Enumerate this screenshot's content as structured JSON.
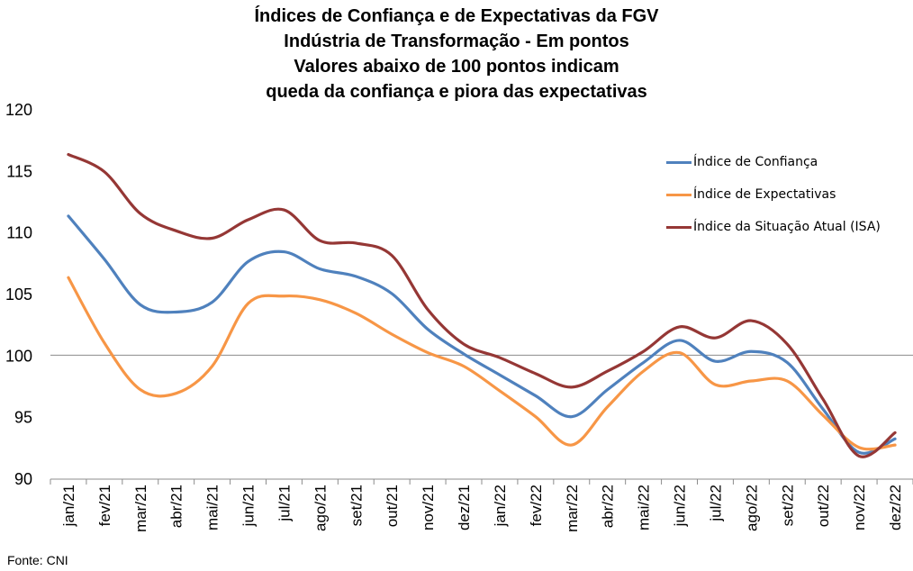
{
  "title_lines": [
    "Índices de Confiança e de Expectativas da FGV",
    "Indústria de Transformação - Em pontos",
    "Valores abaixo de 100 pontos indicam",
    "queda da confiança e piora das expectativas"
  ],
  "source": "Fonte: CNI",
  "chart_data": {
    "type": "line",
    "title": "Índices de Confiança e de Expectativas da FGV Indústria de Transformação - Em pontos Valores abaixo de 100 pontos indicam queda da confiança e piora das expectativas",
    "categories": [
      "jan/21",
      "fev/21",
      "mar/21",
      "abr/21",
      "mai/21",
      "jun/21",
      "jul/21",
      "ago/21",
      "set/21",
      "out/21",
      "nov/21",
      "dez/21",
      "jan/22",
      "fev/22",
      "mar/22",
      "abr/22",
      "mai/22",
      "jun/22",
      "jul/22",
      "ago/22",
      "set/22",
      "out/22",
      "nov/22",
      "dez/22"
    ],
    "ylim": [
      90,
      120
    ],
    "yticks": [
      90,
      95,
      100,
      105,
      110,
      115,
      120
    ],
    "reference_line": 100,
    "grid": false,
    "legend_position": "top-right",
    "series": [
      {
        "name": "Índice de Confiança",
        "color": "#4F81BD",
        "values": [
          111.3,
          107.8,
          104.1,
          103.5,
          104.3,
          107.6,
          108.4,
          107.0,
          106.4,
          105.0,
          102.1,
          100.1,
          98.4,
          96.7,
          95.0,
          97.2,
          99.4,
          101.2,
          99.5,
          100.3,
          99.4,
          95.6,
          92.1,
          93.2
        ]
      },
      {
        "name": "Índice de Expectativas",
        "color": "#F79646",
        "values": [
          106.3,
          101.0,
          97.2,
          96.9,
          99.1,
          104.2,
          104.8,
          104.5,
          103.4,
          101.7,
          100.2,
          99.1,
          97.1,
          95.0,
          92.7,
          95.8,
          98.7,
          100.2,
          97.6,
          97.9,
          97.9,
          95.1,
          92.5,
          92.7
        ]
      },
      {
        "name": "Índice da Situação Atual (ISA)",
        "color": "#953735",
        "values": [
          116.3,
          114.9,
          111.5,
          110.1,
          109.5,
          111.0,
          111.8,
          109.3,
          109.1,
          108.1,
          103.7,
          100.9,
          99.8,
          98.5,
          97.4,
          98.7,
          100.3,
          102.3,
          101.4,
          102.8,
          100.9,
          96.4,
          91.8,
          93.7
        ]
      }
    ]
  }
}
